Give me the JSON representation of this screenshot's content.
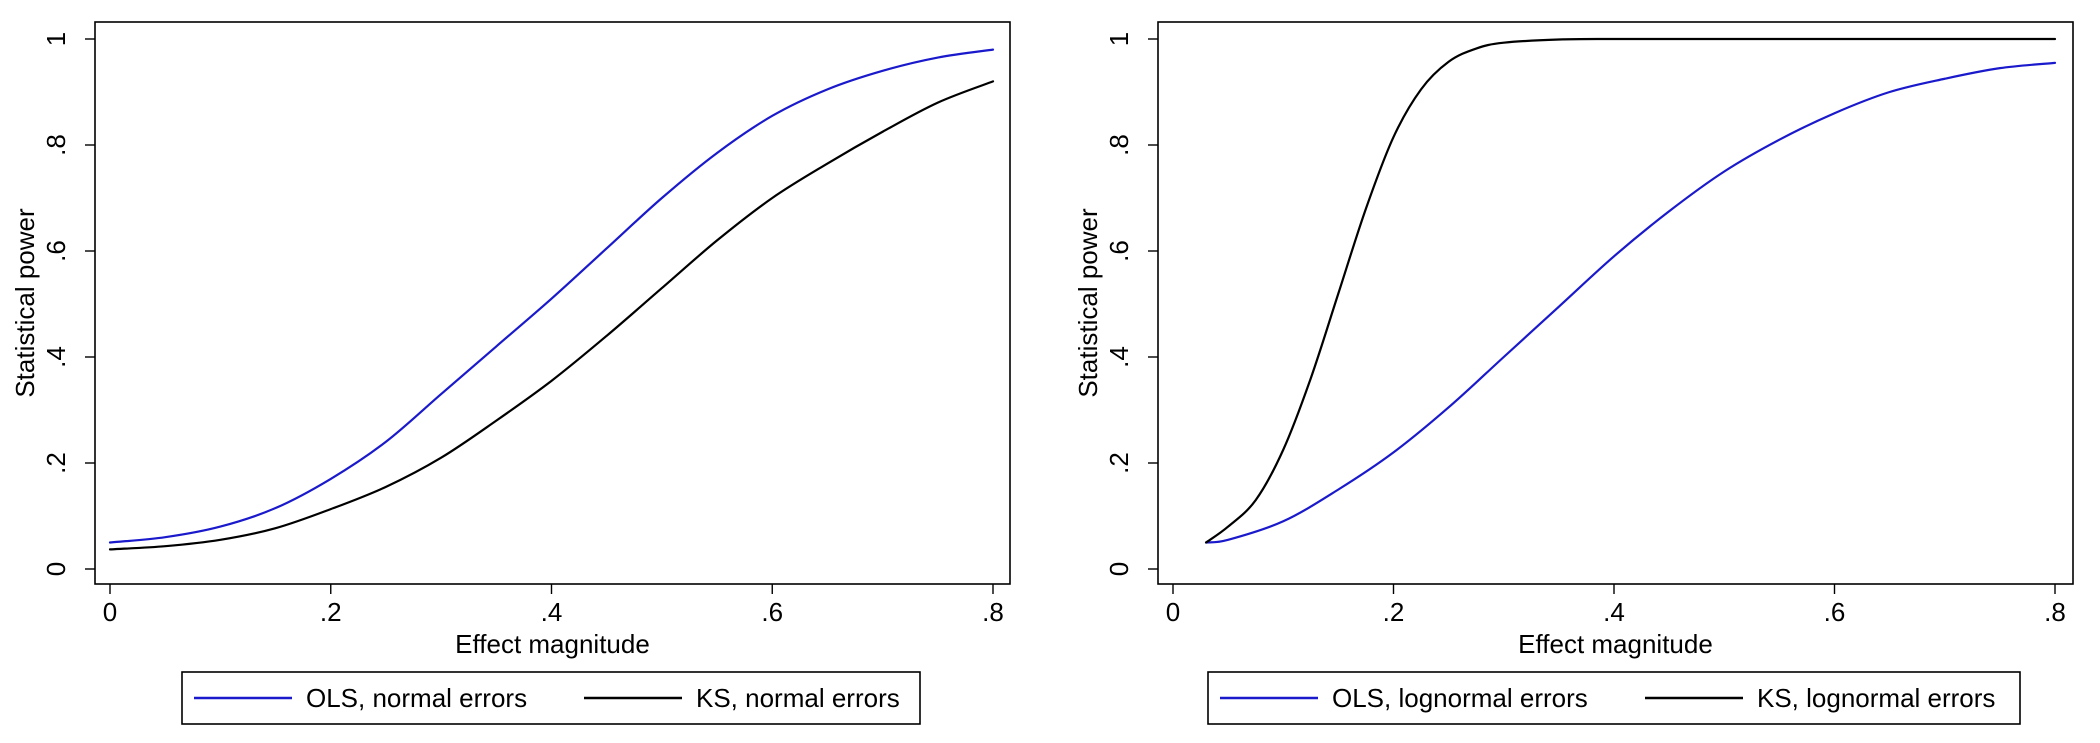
{
  "chart_data": [
    {
      "type": "line",
      "xlabel": "Effect magnitude",
      "ylabel": "Statistical power",
      "xlim": [
        0,
        0.8
      ],
      "ylim": [
        0,
        1
      ],
      "xticks": [
        0,
        0.2,
        0.4,
        0.6,
        0.8
      ],
      "xtick_labels": [
        "0",
        ".2",
        ".4",
        ".6",
        ".8"
      ],
      "yticks": [
        0,
        0.2,
        0.4,
        0.6,
        0.8,
        1
      ],
      "ytick_labels": [
        "0",
        ".2",
        ".4",
        ".6",
        ".8",
        "1"
      ],
      "grid": false,
      "legend_position": "bottom",
      "series": [
        {
          "name": "OLS, normal errors",
          "color": "#1a1acc",
          "x": [
            0,
            0.05,
            0.1,
            0.15,
            0.2,
            0.25,
            0.3,
            0.35,
            0.4,
            0.45,
            0.5,
            0.55,
            0.6,
            0.65,
            0.7,
            0.75,
            0.8
          ],
          "y": [
            0.05,
            0.06,
            0.08,
            0.115,
            0.17,
            0.24,
            0.33,
            0.42,
            0.51,
            0.605,
            0.7,
            0.785,
            0.855,
            0.905,
            0.94,
            0.965,
            0.98
          ]
        },
        {
          "name": "KS, normal errors",
          "color": "#000000",
          "x": [
            0,
            0.05,
            0.1,
            0.15,
            0.2,
            0.25,
            0.3,
            0.35,
            0.4,
            0.45,
            0.5,
            0.55,
            0.6,
            0.65,
            0.7,
            0.75,
            0.8
          ],
          "y": [
            0.037,
            0.043,
            0.055,
            0.077,
            0.113,
            0.155,
            0.21,
            0.28,
            0.355,
            0.44,
            0.53,
            0.62,
            0.7,
            0.765,
            0.825,
            0.88,
            0.92
          ]
        }
      ]
    },
    {
      "type": "line",
      "xlabel": "Effect magnitude",
      "ylabel": "Statistical power",
      "xlim": [
        0,
        0.8
      ],
      "ylim": [
        0,
        1
      ],
      "xticks": [
        0,
        0.2,
        0.4,
        0.6,
        0.8
      ],
      "xtick_labels": [
        "0",
        ".2",
        ".4",
        ".6",
        ".8"
      ],
      "yticks": [
        0,
        0.2,
        0.4,
        0.6,
        0.8,
        1
      ],
      "ytick_labels": [
        "0",
        ".2",
        ".4",
        ".6",
        ".8",
        "1"
      ],
      "grid": false,
      "legend_position": "bottom",
      "series": [
        {
          "name": "OLS, lognormal errors",
          "color": "#1a1acc",
          "x": [
            0.03,
            0.05,
            0.1,
            0.15,
            0.2,
            0.25,
            0.3,
            0.35,
            0.4,
            0.45,
            0.5,
            0.55,
            0.6,
            0.65,
            0.7,
            0.75,
            0.8
          ],
          "y": [
            0.05,
            0.055,
            0.09,
            0.15,
            0.22,
            0.305,
            0.4,
            0.495,
            0.59,
            0.675,
            0.75,
            0.81,
            0.86,
            0.9,
            0.925,
            0.945,
            0.955
          ]
        },
        {
          "name": "KS, lognormal errors",
          "color": "#000000",
          "x": [
            0.03,
            0.05,
            0.075,
            0.1,
            0.125,
            0.15,
            0.175,
            0.2,
            0.225,
            0.25,
            0.275,
            0.3,
            0.35,
            0.4,
            0.5,
            0.6,
            0.7,
            0.8
          ],
          "y": [
            0.05,
            0.08,
            0.13,
            0.225,
            0.36,
            0.52,
            0.68,
            0.815,
            0.905,
            0.957,
            0.982,
            0.993,
            0.999,
            1,
            1,
            1,
            1,
            1
          ]
        }
      ]
    }
  ]
}
